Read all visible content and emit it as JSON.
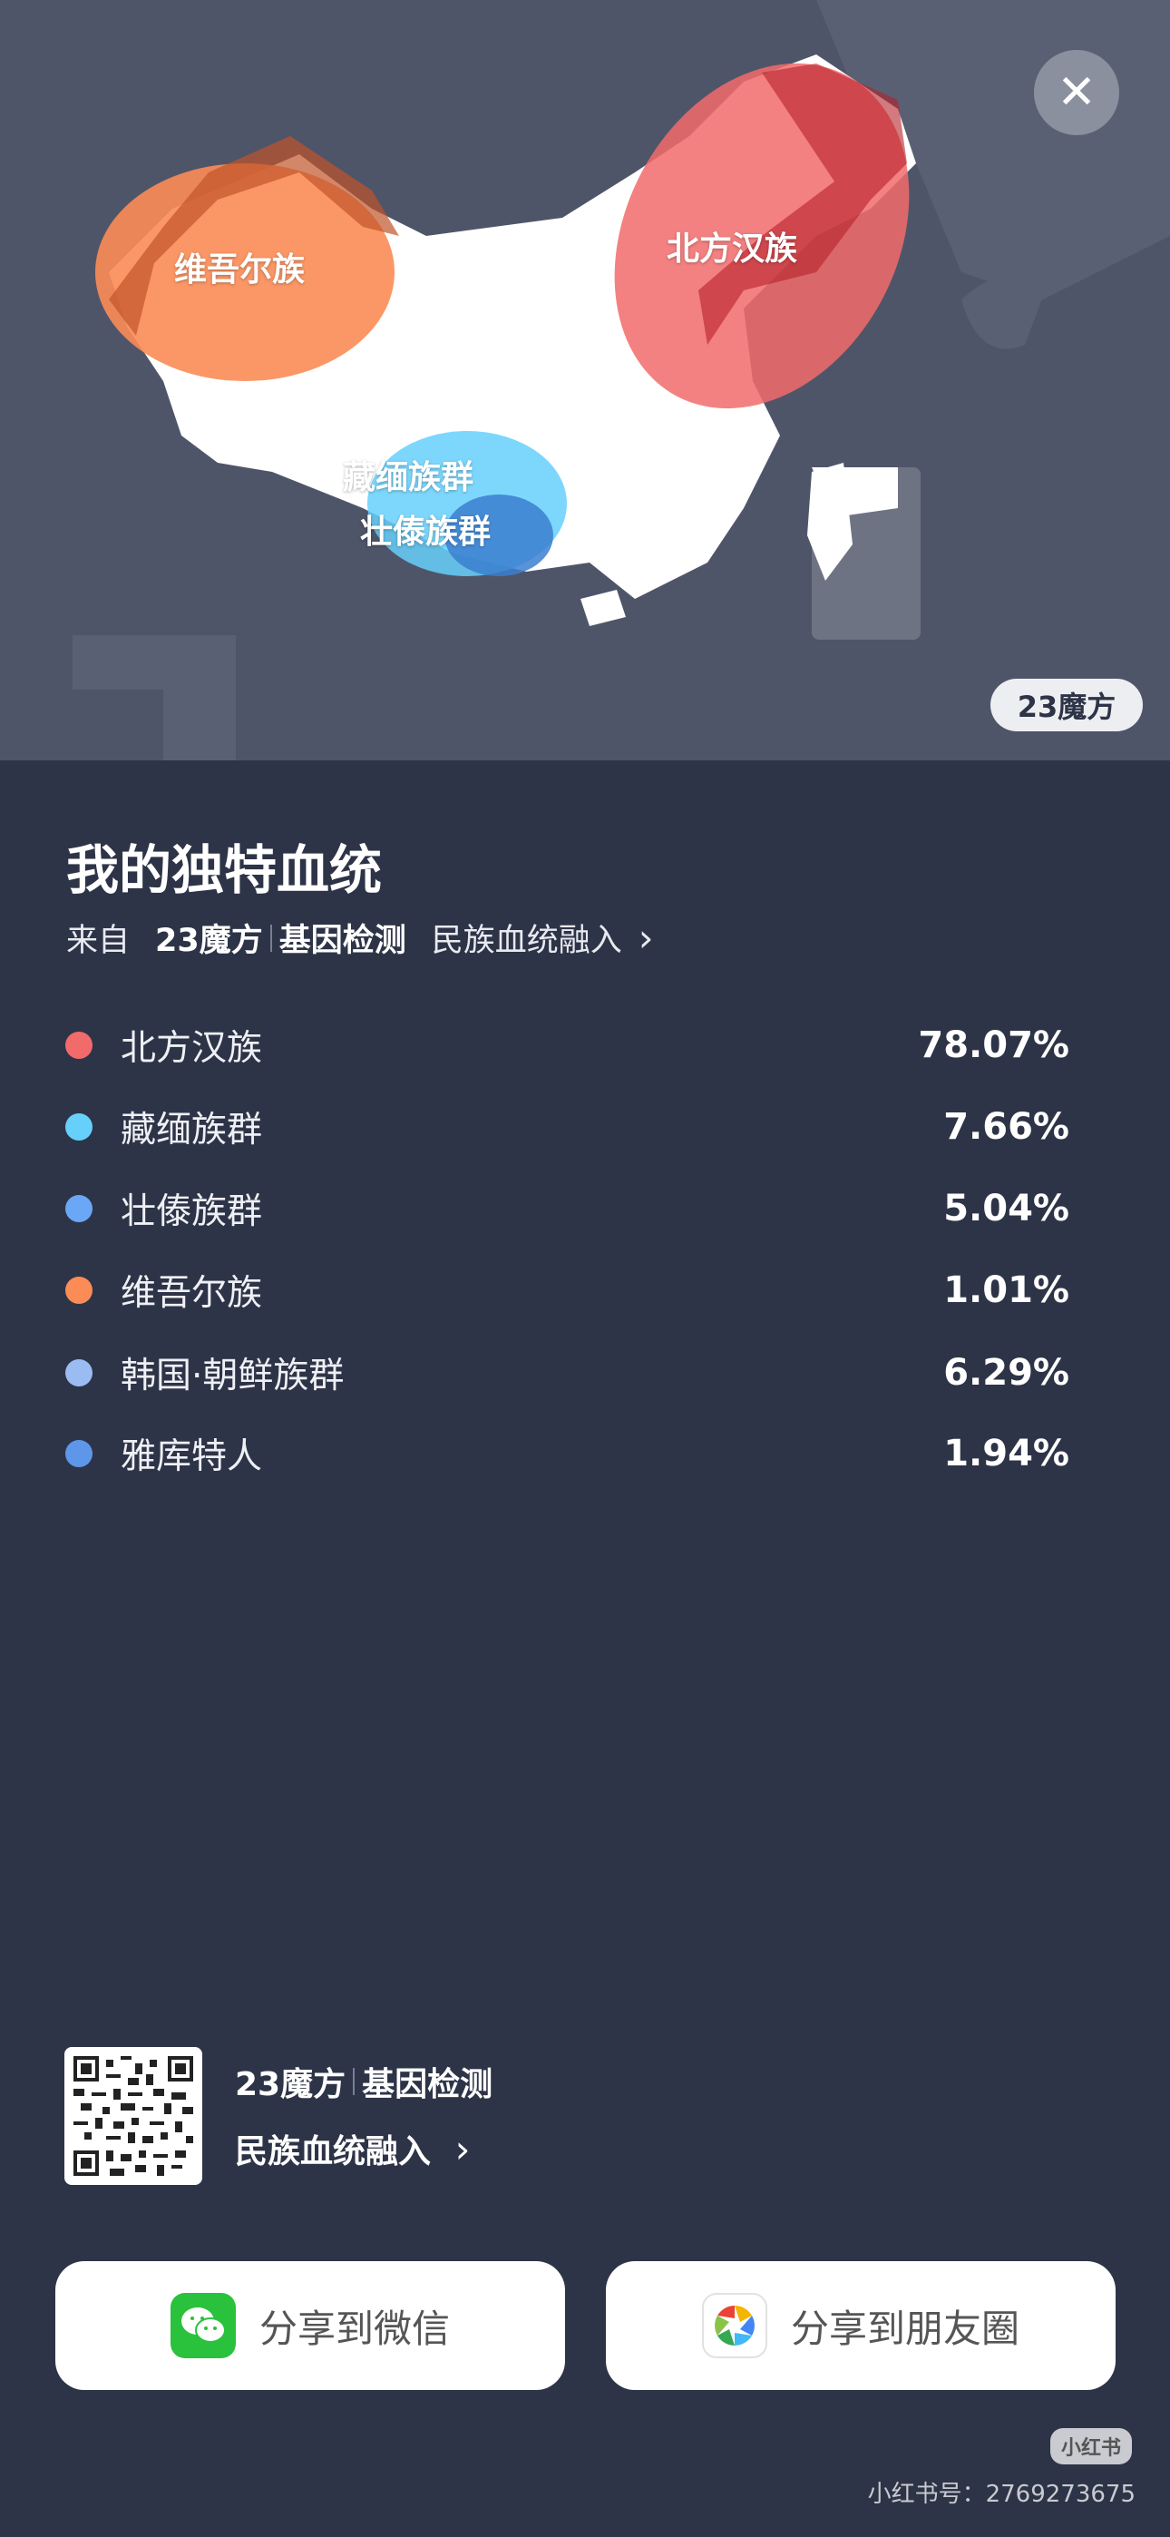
{
  "map": {
    "region_labels": [
      "维吾尔族",
      "北方汉族",
      "藏缅族群",
      "壮傣族群"
    ],
    "provider_badge": "23魔方",
    "close_icon": "close-icon"
  },
  "header": {
    "title": "我的独特血统",
    "from_label": "来自",
    "brand": "23魔方",
    "brand_sub": "基因检测",
    "link": "民族血统融入",
    "chevron": "›"
  },
  "ancestry": [
    {
      "name": "北方汉族",
      "percent": "78.07%",
      "color": "#f26b6b"
    },
    {
      "name": "藏缅族群",
      "percent": "7.66%",
      "color": "#66d0fb"
    },
    {
      "name": "壮傣族群",
      "percent": "5.04%",
      "color": "#6aa7f7"
    },
    {
      "name": "维吾尔族",
      "percent": "1.01%",
      "color": "#fb8c55"
    },
    {
      "name": "韩国·朝鲜族群",
      "percent": "6.29%",
      "color": "#9bbcf3"
    },
    {
      "name": "雅库特人",
      "percent": "1.94%",
      "color": "#5e97ea"
    }
  ],
  "footer": {
    "brand": "23魔方",
    "brand_sub": "基因检测",
    "link": "民族血统融入",
    "chevron": "›"
  },
  "share": {
    "wechat": "分享到微信",
    "moments": "分享到朋友圈"
  },
  "watermark": {
    "logo": "小红书",
    "id_text": "小红书号：2769273675"
  }
}
